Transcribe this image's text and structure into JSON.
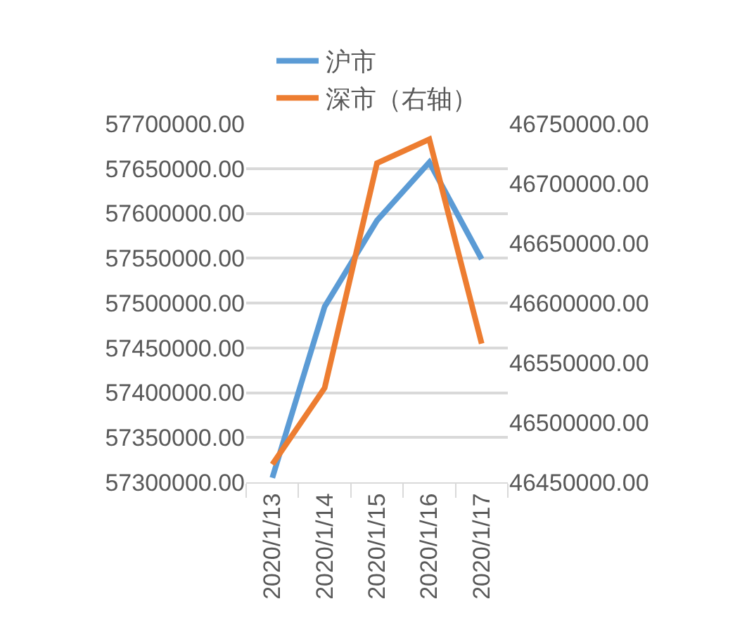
{
  "chart_data": {
    "type": "line",
    "categories": [
      "2020/1/13",
      "2020/1/14",
      "2020/1/15",
      "2020/1/16",
      "2020/1/17"
    ],
    "series": [
      {
        "name": "沪市",
        "color": "#5b9bd5",
        "values": [
          57305000,
          57496000,
          57592000,
          57657000,
          57549000
        ]
      },
      {
        "name": "深市（右轴）",
        "color": "#ed7d31",
        "axis": "y2",
        "values": [
          46465000,
          46529000,
          46717000,
          46737000,
          46566000
        ]
      }
    ],
    "ylim": [
      57300000,
      57700000
    ],
    "yticks": [
      {
        "value": 57300000,
        "label": "57300000.00"
      },
      {
        "value": 57350000,
        "label": "57350000.00"
      },
      {
        "value": 57400000,
        "label": "57400000.00"
      },
      {
        "value": 57450000,
        "label": "57450000.00"
      },
      {
        "value": 57500000,
        "label": "57500000.00"
      },
      {
        "value": 57550000,
        "label": "57550000.00"
      },
      {
        "value": 57600000,
        "label": "57600000.00"
      },
      {
        "value": 57650000,
        "label": "57650000.00"
      },
      {
        "value": 57700000,
        "label": "57700000.00"
      }
    ],
    "y2lim": [
      46450000,
      46750000
    ],
    "y2ticks": [
      {
        "value": 46450000,
        "label": "46450000.00"
      },
      {
        "value": 46500000,
        "label": "46500000.00"
      },
      {
        "value": 46550000,
        "label": "46550000.00"
      },
      {
        "value": 46600000,
        "label": "46600000.00"
      },
      {
        "value": 46650000,
        "label": "46650000.00"
      },
      {
        "value": 46700000,
        "label": "46700000.00"
      },
      {
        "value": 46750000,
        "label": "46750000.00"
      }
    ],
    "grid": "y",
    "legend": "top",
    "marker": "none",
    "line_style": "solid"
  }
}
